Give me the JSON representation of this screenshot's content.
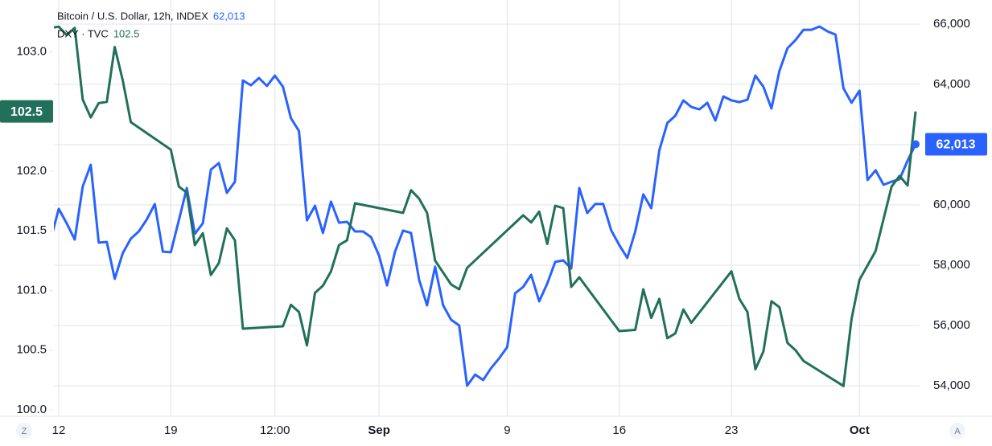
{
  "chart_data": {
    "type": "line",
    "buttons": [
      "Z",
      "A"
    ],
    "xlim": [
      -0.6,
      107.5
    ],
    "xticks": [
      {
        "value": 0,
        "label": "12"
      },
      {
        "value": 14,
        "label": "19"
      },
      {
        "value": 27,
        "label": "12:00"
      },
      {
        "value": 40,
        "label": "Sep"
      },
      {
        "value": 56,
        "label": "9"
      },
      {
        "value": 70,
        "label": "16"
      },
      {
        "value": 84,
        "label": "23"
      },
      {
        "value": 100,
        "label": "Oct"
      }
    ],
    "ylim": [
      100.0,
      103.4
    ],
    "yticks": [
      {
        "value": 100.0,
        "label": "100.0"
      },
      100.5,
      {
        "value": 101.0,
        "label": "101.0"
      },
      101.5,
      {
        "value": 102.0,
        "label": "102.0"
      },
      {
        "value": 103.0,
        "label": "103.0"
      }
    ],
    "y2lim": [
      53200,
      66667
    ],
    "y2ticks": [
      {
        "value": 54000,
        "label": "54,000"
      },
      {
        "value": 56000,
        "label": "56,000"
      },
      {
        "value": 58000,
        "label": "58,000"
      },
      {
        "value": 60000,
        "label": "60,000"
      },
      {
        "value": 62000,
        "label": "62,000"
      },
      {
        "value": 64000,
        "label": "64,000"
      },
      {
        "value": 66000,
        "label": "66,000"
      }
    ],
    "grid": true,
    "series": [
      {
        "name": "Bitcoin / U.S. Dollar, 12h, INDEX",
        "color": "#2962ff",
        "axis": "y2",
        "last_label": "62,013",
        "x": [
          -1,
          0,
          1,
          2,
          3,
          4,
          5,
          6,
          7,
          8,
          9,
          10,
          11,
          12,
          13,
          14,
          15,
          16,
          17,
          18,
          19,
          20,
          21,
          22,
          23,
          24,
          25,
          26,
          27,
          28,
          29,
          30,
          31,
          32,
          33,
          34,
          35,
          36,
          37,
          38,
          39,
          40,
          41,
          42,
          43,
          44,
          45,
          46,
          47,
          48,
          49,
          50,
          51,
          52,
          53,
          54,
          55,
          56,
          57,
          58,
          59,
          60,
          61,
          62,
          63,
          64,
          65,
          66,
          67,
          68,
          69,
          70,
          71,
          72,
          73,
          74,
          75,
          76,
          77,
          78,
          79,
          80,
          81,
          82,
          83,
          84,
          85,
          86,
          87,
          88,
          89,
          90,
          91,
          92,
          93,
          94,
          95,
          96,
          97,
          98,
          99,
          100,
          101,
          102,
          103,
          104,
          105,
          106,
          107
        ],
        "values": [
          58850,
          59870,
          59390,
          58850,
          60610,
          61330,
          58750,
          58770,
          57550,
          58400,
          58880,
          59120,
          59520,
          60030,
          58450,
          58430,
          59490,
          60560,
          59040,
          59390,
          61170,
          61390,
          60400,
          60770,
          64130,
          63970,
          64210,
          63950,
          64290,
          63920,
          62880,
          62450,
          59490,
          59970,
          59070,
          60110,
          59410,
          59440,
          59120,
          59120,
          58930,
          58320,
          57330,
          58450,
          59150,
          59070,
          57520,
          56670,
          57950,
          56670,
          56190,
          56000,
          54000,
          54370,
          54190,
          54590,
          54910,
          55280,
          57070,
          57280,
          57680,
          56800,
          57390,
          58110,
          58160,
          57890,
          60560,
          59730,
          60030,
          60030,
          59150,
          58670,
          58240,
          59120,
          60350,
          59890,
          61810,
          62720,
          62960,
          63470,
          63250,
          63170,
          63390,
          62800,
          63600,
          63470,
          63410,
          63490,
          64290,
          63920,
          63200,
          64450,
          65200,
          65470,
          65810,
          65810,
          65920,
          65760,
          65650,
          63870,
          63390,
          63790,
          60830,
          61150,
          60670,
          60770,
          60850,
          61470,
          62013
        ]
      },
      {
        "name": "DXY · TVC",
        "color": "#22705a",
        "axis": "y",
        "last_label": "102.5",
        "x": [
          -1,
          0,
          1,
          2,
          3,
          4,
          5,
          6,
          7,
          8,
          9,
          14,
          15,
          16,
          17,
          18,
          19,
          20,
          21,
          22,
          23,
          28,
          29,
          30,
          31,
          32,
          33,
          34,
          35,
          36,
          37,
          43,
          44,
          45,
          46,
          47,
          48,
          49,
          50,
          51,
          58,
          59,
          60,
          61,
          62,
          63,
          64,
          65,
          70,
          72,
          73,
          74,
          75,
          76,
          77,
          78,
          79,
          84,
          85,
          86,
          87,
          88,
          89,
          90,
          91,
          92,
          93,
          98,
          99,
          100,
          102,
          104,
          105,
          106,
          107
        ],
        "values": [
          103.2,
          103.21,
          103.14,
          103.2,
          102.6,
          102.45,
          102.57,
          102.58,
          103.04,
          102.76,
          102.41,
          102.18,
          101.87,
          101.82,
          101.38,
          101.48,
          101.13,
          101.23,
          101.52,
          101.42,
          100.68,
          100.7,
          100.88,
          100.82,
          100.54,
          100.98,
          101.04,
          101.16,
          101.38,
          101.42,
          101.73,
          101.65,
          101.84,
          101.77,
          101.65,
          101.25,
          101.15,
          101.05,
          101.01,
          101.19,
          101.63,
          101.57,
          101.66,
          101.39,
          101.71,
          101.69,
          101.03,
          101.11,
          100.66,
          100.67,
          101.01,
          100.77,
          100.93,
          100.6,
          100.64,
          100.84,
          100.73,
          101.16,
          100.93,
          100.82,
          100.34,
          100.49,
          100.91,
          100.86,
          100.56,
          100.5,
          100.41,
          100.2,
          100.76,
          101.09,
          101.33,
          101.87,
          101.96,
          101.88,
          102.5
        ]
      }
    ]
  }
}
